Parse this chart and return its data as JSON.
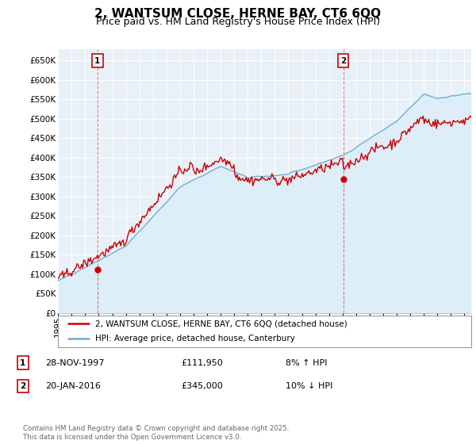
{
  "title": "2, WANTSUM CLOSE, HERNE BAY, CT6 6QQ",
  "subtitle": "Price paid vs. HM Land Registry's House Price Index (HPI)",
  "ylim": [
    0,
    680000
  ],
  "yticks": [
    0,
    50000,
    100000,
    150000,
    200000,
    250000,
    300000,
    350000,
    400000,
    450000,
    500000,
    550000,
    600000,
    650000
  ],
  "xlim_start": 1995.0,
  "xlim_end": 2025.5,
  "hpi_line_color": "#6baed6",
  "hpi_fill_color": "#ddeef8",
  "price_color": "#cc0000",
  "dashed_vline_color": "#cc0000",
  "dashed_vline_alpha": 0.5,
  "sale1_year": 1997.91,
  "sale1_price": 111950,
  "sale1_label": "1",
  "sale2_year": 2016.05,
  "sale2_price": 345000,
  "sale2_label": "2",
  "legend_property_label": "2, WANTSUM CLOSE, HERNE BAY, CT6 6QQ (detached house)",
  "legend_hpi_label": "HPI: Average price, detached house, Canterbury",
  "annotation1_box_label": "1",
  "annotation1_date": "28-NOV-1997",
  "annotation1_price": "£111,950",
  "annotation1_hpi": "8% ↑ HPI",
  "annotation2_box_label": "2",
  "annotation2_date": "20-JAN-2016",
  "annotation2_price": "£345,000",
  "annotation2_hpi": "10% ↓ HPI",
  "footer_text": "Contains HM Land Registry data © Crown copyright and database right 2025.\nThis data is licensed under the Open Government Licence v3.0.",
  "background_color": "#ffffff",
  "chart_bg_color": "#e8f0f8",
  "grid_color": "#ffffff",
  "title_fontsize": 11,
  "subtitle_fontsize": 9,
  "tick_fontsize": 7.5
}
